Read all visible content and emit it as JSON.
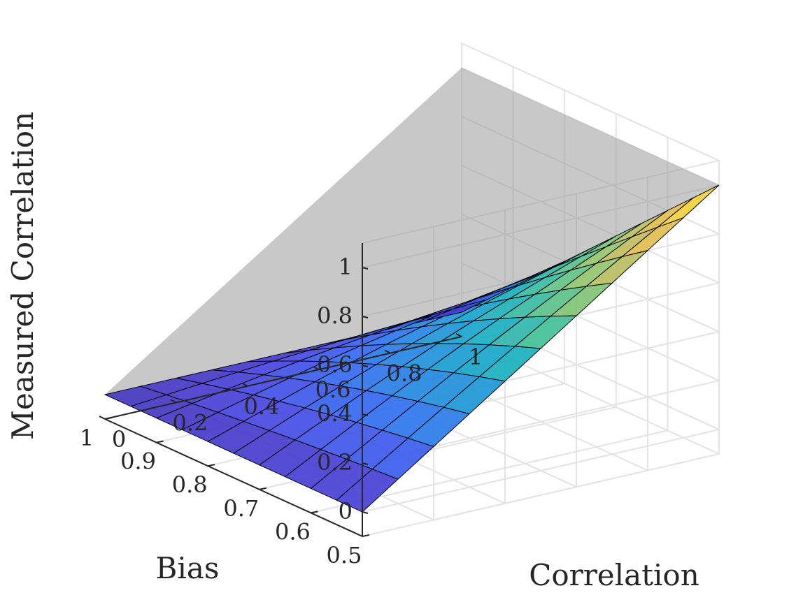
{
  "chart_data": {
    "type": "surface",
    "zlabel": "Measured Correlation",
    "xlabel": "Bias",
    "ylabel": "Correlation",
    "bias_range": [
      0.5,
      1
    ],
    "correlation_range": [
      0,
      1
    ],
    "z_range": [
      -0.1,
      1.1
    ],
    "bias_ticks": [
      "0.5",
      "0.6",
      "0.7",
      "0.8",
      "0.9",
      "1"
    ],
    "correlation_ticks": [
      "0",
      "0.2",
      "0.4",
      "0.6",
      "0.8",
      "1"
    ],
    "z_ticks": [
      "0",
      "0.2",
      "0.4",
      "0.6",
      "0.8",
      "1"
    ],
    "bias_tick_values": [
      0.5,
      0.6,
      0.7,
      0.8,
      0.9,
      1.0
    ],
    "correlation_tick_values": [
      0,
      0.2,
      0.4,
      0.6,
      0.8,
      1.0
    ],
    "z_tick_values": [
      0,
      0.2,
      0.4,
      0.6,
      0.8,
      1.0
    ],
    "bias_grid": [
      0.5,
      0.55,
      0.6,
      0.65,
      0.7,
      0.75,
      0.8,
      0.85,
      0.9,
      0.95,
      1.0
    ],
    "correlation_grid": [
      0,
      0.1,
      0.2,
      0.3,
      0.4,
      0.5,
      0.6,
      0.7,
      0.8,
      0.9,
      1.0
    ],
    "reference_plane": "Measured Correlation = Correlation (gray, translucent)",
    "colormap": "parula",
    "grid": true
  }
}
